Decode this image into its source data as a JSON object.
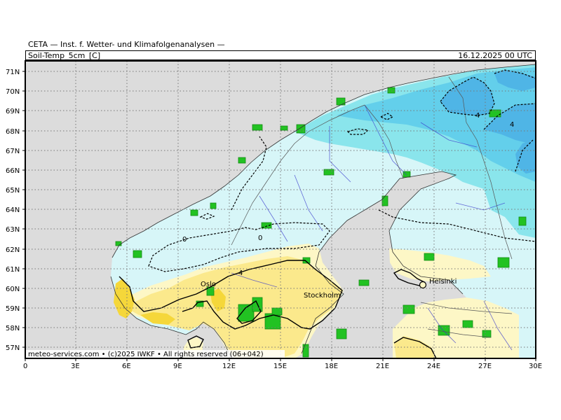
{
  "header": {
    "title": "CETA — Inst. f. Wetter- und Klimafolgenanalysen —",
    "parameter": "Soil-Temp_5cm_[C]",
    "valid_time": "16.12.2025 00 UTC"
  },
  "footer": {
    "credit": "meteo-services.com • (c)2025 IWKF • All rights reserved (06+042)"
  },
  "axes": {
    "lat_labels": [
      "71N",
      "70N",
      "69N",
      "68N",
      "67N",
      "66N",
      "65N",
      "64N",
      "63N",
      "62N",
      "61N",
      "60N",
      "59N",
      "58N",
      "57N"
    ],
    "lon_labels": [
      "0",
      "3E",
      "6E",
      "9E",
      "12E",
      "15E",
      "18E",
      "21E",
      "24E",
      "27E",
      "30E"
    ]
  },
  "cities": [
    {
      "name": "Oslo"
    },
    {
      "name": "Stockholm"
    },
    {
      "name": "Helsinki"
    }
  ],
  "contour_labels": [
    "0",
    "0",
    "4",
    "4",
    "4"
  ],
  "colors": {
    "sea": "#dcdcdc",
    "soil_below_0": "#d7f6f8",
    "soil_cold": "#8ae5ec",
    "soil_colder": "#63cfeb",
    "soil_coldest": "#4fb5e6",
    "soil_warm": "#fdf7c6",
    "soil_warmer": "#fbe98c",
    "soil_warmest": "#f5d73a",
    "glacier_green": "#22c222"
  }
}
